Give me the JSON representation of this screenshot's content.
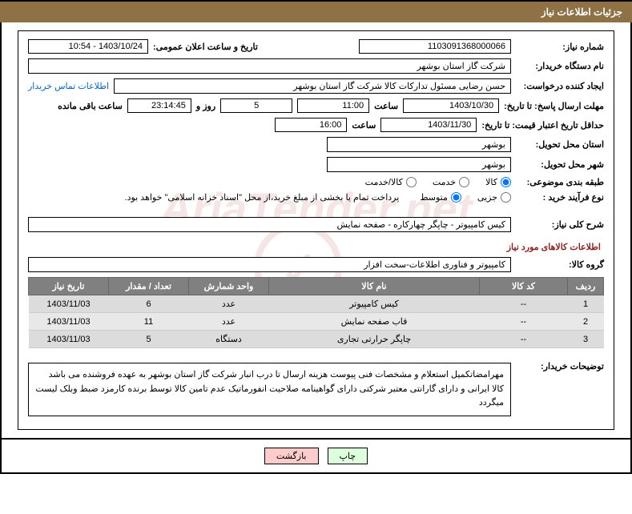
{
  "header": {
    "title": "جزئیات اطلاعات نیاز"
  },
  "fields": {
    "need_number_label": "شماره نیاز:",
    "need_number": "1103091368000066",
    "announce_date_label": "تاریخ و ساعت اعلان عمومی:",
    "announce_date": "1403/10/24 - 10:54",
    "buyer_label": "نام دستگاه خریدار:",
    "buyer": "شرکت گاز استان بوشهر",
    "requester_label": "ایجاد کننده درخواست:",
    "requester": "حسن رضایی مسئول تدارکات کالا شرکت گاز استان بوشهر",
    "contact_link": "اطلاعات تماس خریدار",
    "deadline_label": "مهلت ارسال پاسخ: تا تاریخ:",
    "deadline_date": "1403/10/30",
    "time_label1": "ساعت",
    "deadline_time": "11:00",
    "days_remaining": "5",
    "days_text": "روز و",
    "time_remaining": "23:14:45",
    "remain_text": "ساعت باقی مانده",
    "validity_label": "حداقل تاریخ اعتبار قیمت: تا تاریخ:",
    "validity_date": "1403/11/30",
    "time_label2": "ساعت",
    "validity_time": "16:00",
    "province_label": "استان محل تحویل:",
    "province": "بوشهر",
    "city_label": "شهر محل تحویل:",
    "city": "بوشهر",
    "category_label": "طبقه بندی موضوعی:",
    "radio_kala": "کالا",
    "radio_khedmat": "خدمت",
    "radio_both": "کالا/خدمت",
    "process_label": "نوع فرآیند خرید :",
    "radio_detail": "جزیی",
    "radio_medium": "متوسط",
    "process_note": "پرداخت تمام یا بخشی از مبلغ خرید،از محل \"اسناد خزانه اسلامی\" خواهد بود.",
    "desc_label": "شرح کلی نیاز:",
    "desc_value": "کیس کامپیوتر - چاپگر چهارکاره - صفحه نمایش",
    "section_title": "اطلاعات کالاهای مورد نیاز",
    "group_label": "گروه کالا:",
    "group_value": "کامپیوتر و فناوری اطلاعات-سخت افزار",
    "notes_label": "توضیحات خریدار:",
    "notes_value": "مهرامضاتکمیل استعلام و مشخصات فنی پیوست هزینه ارسال تا درب انبار شرکت گاز استان بوشهر به عهده فروشنده می باشد کالا ایرانی و دارای گارانتی معتبر شرکتی دارای گواهینامه صلاحیت انفورماتیک  عدم تامین کالا توسط برنده کارمزد ضبط وبلک لیست میگردد"
  },
  "table": {
    "headers": {
      "row": "ردیف",
      "code": "کد کالا",
      "name": "نام کالا",
      "unit": "واحد شمارش",
      "qty": "تعداد / مقدار",
      "date": "تاریخ نیاز"
    },
    "rows": [
      {
        "row": "1",
        "code": "--",
        "name": "کیس کامپیوتر",
        "unit": "عدد",
        "qty": "6",
        "date": "1403/11/03"
      },
      {
        "row": "2",
        "code": "--",
        "name": "قاب صفحه نمایش",
        "unit": "عدد",
        "qty": "11",
        "date": "1403/11/03"
      },
      {
        "row": "3",
        "code": "--",
        "name": "چاپگر حرارتی تجاری",
        "unit": "دستگاه",
        "qty": "5",
        "date": "1403/11/03"
      }
    ]
  },
  "buttons": {
    "print": "چاپ",
    "back": "بازگشت"
  },
  "watermark": "AriaTender.net",
  "colors": {
    "header_bg": "#8f7146",
    "table_header_bg": "#808080",
    "section_title": "#8f2020"
  }
}
